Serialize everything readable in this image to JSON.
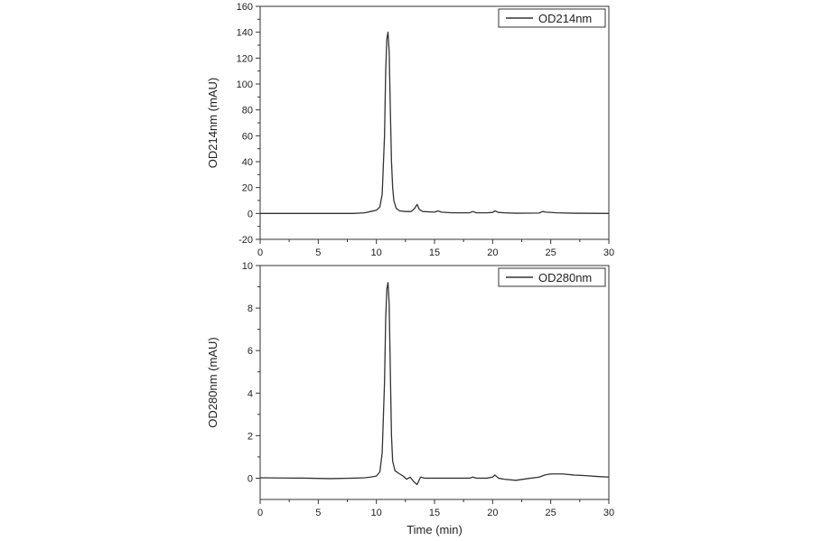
{
  "chart_data": [
    {
      "type": "line",
      "xlabel": "",
      "ylabel": "OD214nm (mAU)",
      "xlim": [
        0,
        30
      ],
      "ylim": [
        -20,
        160
      ],
      "xticks": [
        0,
        5,
        10,
        15,
        20,
        25,
        30
      ],
      "yticks": [
        -20,
        0,
        20,
        40,
        60,
        80,
        100,
        120,
        140,
        160
      ],
      "legend": "top-right",
      "grid": false,
      "series": [
        {
          "name": "OD214nm",
          "color": "#333333",
          "x": [
            0,
            2,
            4,
            6,
            8,
            9,
            9.5,
            10,
            10.3,
            10.5,
            10.7,
            10.8,
            10.9,
            11.0,
            11.1,
            11.2,
            11.3,
            11.4,
            11.5,
            11.7,
            12.0,
            12.5,
            13.0,
            13.3,
            13.5,
            13.7,
            14.0,
            15.0,
            15.3,
            15.6,
            16.5,
            18.0,
            18.3,
            18.6,
            19.5,
            20.0,
            20.2,
            20.5,
            21.0,
            22.0,
            24.0,
            24.3,
            24.6,
            25.5,
            27.0,
            30.0
          ],
          "y": [
            0,
            0,
            0,
            0,
            0,
            0.5,
            1.5,
            2.5,
            5,
            15,
            60,
            110,
            135,
            140,
            125,
            80,
            40,
            20,
            10,
            4,
            2,
            1.5,
            1.5,
            4,
            7,
            3,
            1.5,
            1,
            2,
            1,
            0.5,
            0.5,
            1.5,
            0.5,
            0.5,
            0.8,
            2,
            0.8,
            0.5,
            0.2,
            0.3,
            1.5,
            1,
            0.5,
            0.2,
            0
          ]
        }
      ]
    },
    {
      "type": "line",
      "xlabel": "Time (min)",
      "ylabel": "OD280nm (mAU)",
      "xlim": [
        0,
        30
      ],
      "ylim": [
        -1,
        10
      ],
      "xticks": [
        0,
        5,
        10,
        15,
        20,
        25,
        30
      ],
      "yticks": [
        0,
        2,
        4,
        6,
        8,
        10
      ],
      "legend": "top-right",
      "grid": false,
      "series": [
        {
          "name": "OD280nm",
          "color": "#333333",
          "x": [
            0,
            2,
            4,
            6,
            7,
            8,
            9,
            9.5,
            10,
            10.3,
            10.5,
            10.7,
            10.8,
            10.9,
            11.0,
            11.1,
            11.2,
            11.3,
            11.4,
            11.6,
            12.0,
            12.3,
            12.6,
            12.9,
            13.2,
            13.5,
            13.8,
            14.2,
            15.0,
            17.0,
            18.0,
            18.3,
            18.6,
            19.5,
            20.0,
            20.2,
            20.5,
            21.0,
            22.0,
            23.0,
            24.0,
            24.5,
            25.0,
            26.0,
            27.0,
            28.0,
            29.0,
            30.0
          ],
          "y": [
            0.02,
            0.01,
            0.0,
            -0.02,
            -0.01,
            0.0,
            0.02,
            0.05,
            0.1,
            0.3,
            1.2,
            4.5,
            7.5,
            8.9,
            9.2,
            8.2,
            5.0,
            2.0,
            0.8,
            0.35,
            0.2,
            0.1,
            -0.05,
            0.05,
            -0.15,
            -0.3,
            0.05,
            0.0,
            0.0,
            0.0,
            0.0,
            0.05,
            0.0,
            0.0,
            0.05,
            0.15,
            0.0,
            -0.05,
            -0.1,
            -0.02,
            0.05,
            0.15,
            0.2,
            0.2,
            0.15,
            0.12,
            0.08,
            0.05
          ]
        }
      ]
    }
  ]
}
